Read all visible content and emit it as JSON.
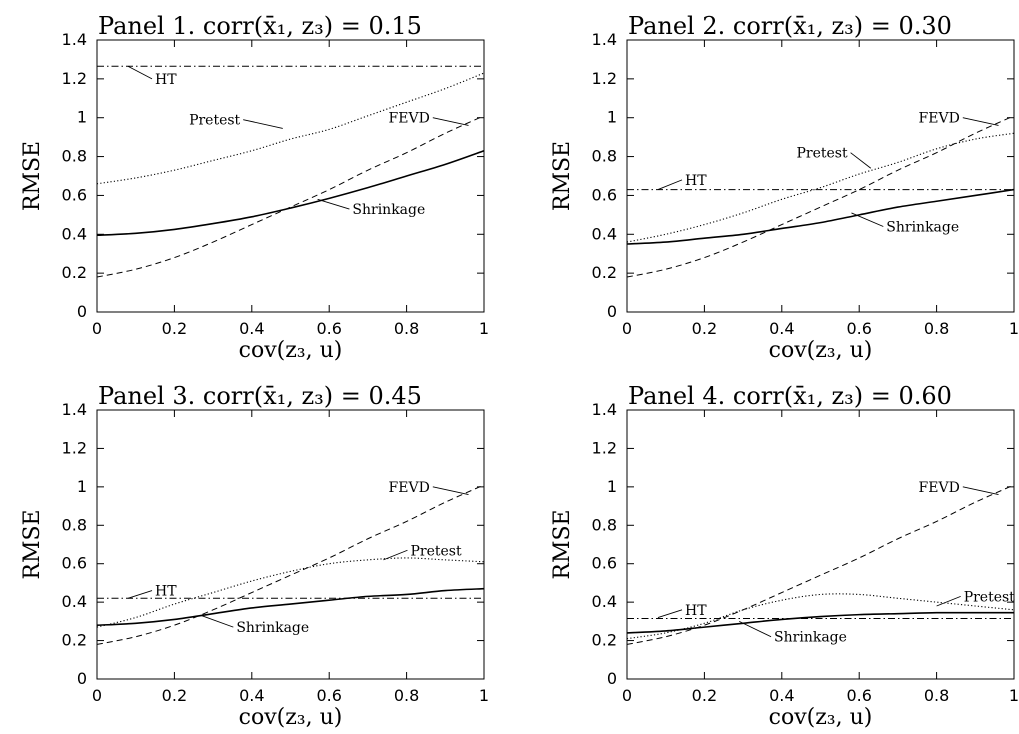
{
  "chart_data": [
    {
      "type": "line",
      "title": "Panel 1. corr(x̄₁, z₃) = 0.15",
      "xlabel": "cov(z₃, u)",
      "ylabel": "RMSE",
      "xlim": [
        0,
        1
      ],
      "ylim": [
        0,
        1.4
      ],
      "xticks": [
        "0",
        "0.2",
        "0.4",
        "0.6",
        "0.8",
        "1"
      ],
      "yticks": [
        "0",
        "0.2",
        "0.4",
        "0.6",
        "0.8",
        "1",
        "1.2",
        "1.4"
      ],
      "grid": false,
      "series": [
        {
          "name": "HT",
          "style": "dashdot",
          "x": [
            0,
            1
          ],
          "values": [
            1.265,
            1.265
          ]
        },
        {
          "name": "Pretest",
          "style": "dotted",
          "x": [
            0,
            0.1,
            0.2,
            0.3,
            0.4,
            0.5,
            0.6,
            0.7,
            0.8,
            0.9,
            1.0
          ],
          "values": [
            0.66,
            0.69,
            0.73,
            0.78,
            0.83,
            0.89,
            0.94,
            1.01,
            1.08,
            1.15,
            1.23
          ]
        },
        {
          "name": "FEVD",
          "style": "dashed",
          "x": [
            0,
            0.1,
            0.2,
            0.3,
            0.4,
            0.5,
            0.6,
            0.7,
            0.8,
            0.9,
            1.0
          ],
          "values": [
            0.18,
            0.22,
            0.28,
            0.36,
            0.45,
            0.54,
            0.63,
            0.73,
            0.82,
            0.92,
            1.01
          ]
        },
        {
          "name": "Shrinkage",
          "style": "solid",
          "x": [
            0,
            0.1,
            0.2,
            0.3,
            0.4,
            0.5,
            0.6,
            0.7,
            0.8,
            0.9,
            1.0
          ],
          "values": [
            0.395,
            0.405,
            0.425,
            0.455,
            0.49,
            0.535,
            0.585,
            0.64,
            0.7,
            0.76,
            0.83
          ]
        }
      ]
    },
    {
      "type": "line",
      "title": "Panel 2. corr(x̄₁, z₃) = 0.30",
      "xlabel": "cov(z₃, u)",
      "ylabel": "RMSE",
      "xlim": [
        0,
        1
      ],
      "ylim": [
        0,
        1.4
      ],
      "xticks": [
        "0",
        "0.2",
        "0.4",
        "0.6",
        "0.8",
        "1"
      ],
      "yticks": [
        "0",
        "0.2",
        "0.4",
        "0.6",
        "0.8",
        "1",
        "1.2",
        "1.4"
      ],
      "grid": false,
      "series": [
        {
          "name": "HT",
          "style": "dashdot",
          "x": [
            0,
            1
          ],
          "values": [
            0.63,
            0.63
          ]
        },
        {
          "name": "Pretest",
          "style": "dotted",
          "x": [
            0,
            0.1,
            0.2,
            0.3,
            0.4,
            0.5,
            0.6,
            0.7,
            0.8,
            0.9,
            1.0
          ],
          "values": [
            0.36,
            0.4,
            0.45,
            0.51,
            0.58,
            0.64,
            0.71,
            0.77,
            0.84,
            0.89,
            0.92
          ]
        },
        {
          "name": "FEVD",
          "style": "dashed",
          "x": [
            0,
            0.1,
            0.2,
            0.3,
            0.4,
            0.5,
            0.6,
            0.7,
            0.8,
            0.9,
            1.0
          ],
          "values": [
            0.18,
            0.22,
            0.28,
            0.36,
            0.45,
            0.54,
            0.63,
            0.73,
            0.82,
            0.92,
            1.01
          ]
        },
        {
          "name": "Shrinkage",
          "style": "solid",
          "x": [
            0,
            0.1,
            0.2,
            0.3,
            0.4,
            0.5,
            0.6,
            0.7,
            0.8,
            0.9,
            1.0
          ],
          "values": [
            0.35,
            0.36,
            0.38,
            0.4,
            0.43,
            0.46,
            0.5,
            0.54,
            0.57,
            0.6,
            0.63
          ]
        }
      ]
    },
    {
      "type": "line",
      "title": "Panel 3. corr(x̄₁, z₃) = 0.45",
      "xlabel": "cov(z₃, u)",
      "ylabel": "RMSE",
      "xlim": [
        0,
        1
      ],
      "ylim": [
        0,
        1.4
      ],
      "xticks": [
        "0",
        "0.2",
        "0.4",
        "0.6",
        "0.8",
        "1"
      ],
      "yticks": [
        "0",
        "0.2",
        "0.4",
        "0.6",
        "0.8",
        "1",
        "1.2",
        "1.4"
      ],
      "grid": false,
      "series": [
        {
          "name": "HT",
          "style": "dashdot",
          "x": [
            0,
            1
          ],
          "values": [
            0.42,
            0.42
          ]
        },
        {
          "name": "Pretest",
          "style": "dotted",
          "x": [
            0,
            0.1,
            0.2,
            0.3,
            0.4,
            0.5,
            0.6,
            0.7,
            0.8,
            0.9,
            1.0
          ],
          "values": [
            0.27,
            0.32,
            0.39,
            0.45,
            0.51,
            0.56,
            0.6,
            0.62,
            0.63,
            0.62,
            0.61
          ]
        },
        {
          "name": "FEVD",
          "style": "dashed",
          "x": [
            0,
            0.1,
            0.2,
            0.3,
            0.4,
            0.5,
            0.6,
            0.7,
            0.8,
            0.9,
            1.0
          ],
          "values": [
            0.18,
            0.22,
            0.28,
            0.36,
            0.45,
            0.54,
            0.63,
            0.73,
            0.82,
            0.92,
            1.01
          ]
        },
        {
          "name": "Shrinkage",
          "style": "solid",
          "x": [
            0,
            0.1,
            0.2,
            0.3,
            0.4,
            0.5,
            0.6,
            0.7,
            0.8,
            0.9,
            1.0
          ],
          "values": [
            0.28,
            0.29,
            0.31,
            0.34,
            0.37,
            0.39,
            0.41,
            0.43,
            0.44,
            0.46,
            0.47
          ]
        }
      ]
    },
    {
      "type": "line",
      "title": "Panel 4. corr(x̄₁, z₃) = 0.60",
      "xlabel": "cov(z₃, u)",
      "ylabel": "RMSE",
      "xlim": [
        0,
        1
      ],
      "ylim": [
        0,
        1.4
      ],
      "xticks": [
        "0",
        "0.2",
        "0.4",
        "0.6",
        "0.8",
        "1"
      ],
      "yticks": [
        "0",
        "0.2",
        "0.4",
        "0.6",
        "0.8",
        "1",
        "1.2",
        "1.4"
      ],
      "grid": false,
      "series": [
        {
          "name": "HT",
          "style": "dashdot",
          "x": [
            0,
            1
          ],
          "values": [
            0.315,
            0.315
          ]
        },
        {
          "name": "Pretest",
          "style": "dotted",
          "x": [
            0,
            0.1,
            0.2,
            0.3,
            0.4,
            0.5,
            0.6,
            0.7,
            0.8,
            0.9,
            1.0
          ],
          "values": [
            0.21,
            0.24,
            0.29,
            0.36,
            0.41,
            0.44,
            0.44,
            0.42,
            0.4,
            0.38,
            0.36
          ]
        },
        {
          "name": "FEVD",
          "style": "dashed",
          "x": [
            0,
            0.1,
            0.2,
            0.3,
            0.4,
            0.5,
            0.6,
            0.7,
            0.8,
            0.9,
            1.0
          ],
          "values": [
            0.18,
            0.22,
            0.28,
            0.36,
            0.45,
            0.54,
            0.63,
            0.73,
            0.82,
            0.92,
            1.01
          ]
        },
        {
          "name": "Shrinkage",
          "style": "solid",
          "x": [
            0,
            0.1,
            0.2,
            0.3,
            0.4,
            0.5,
            0.6,
            0.7,
            0.8,
            0.9,
            1.0
          ],
          "values": [
            0.24,
            0.25,
            0.27,
            0.29,
            0.31,
            0.325,
            0.335,
            0.34,
            0.345,
            0.345,
            0.345
          ]
        }
      ]
    }
  ]
}
